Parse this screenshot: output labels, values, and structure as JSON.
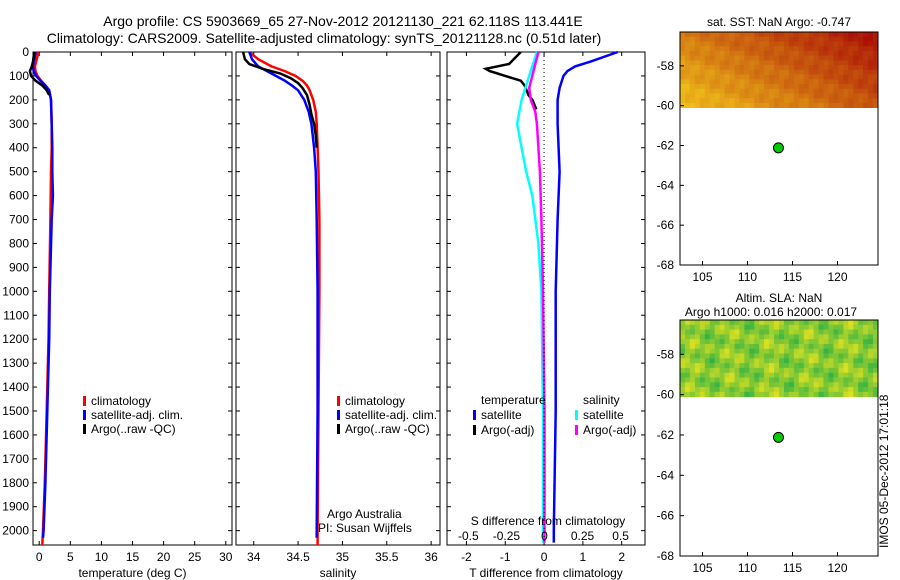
{
  "header": {
    "line1": "Argo profile: CS 5903669_65 27-Nov-2012 20121130_221 62.118S 113.441E",
    "line2": "Climatology: CARS2009. Satellite-adjusted climatology: synTS_20121128.nc (0.51d later)"
  },
  "credit": {
    "line1": "Argo Australia",
    "line2": "PI: Susan Wijffels"
  },
  "stamp": "IMOS 05-Dec-2012 17:01:18",
  "colors": {
    "climatology": "#ff0000",
    "satellite_clim": "#0000ff",
    "argo": "#000000",
    "salinity_satellite": "#00ffff",
    "salinity_argo": "#ff00ff",
    "argo_dot": "#00cc00"
  },
  "chart_data": [
    {
      "type": "line",
      "id": "temperature",
      "xlabel": "temperature (deg C)",
      "xlim": [
        -1,
        31
      ],
      "ylim": [
        2060,
        0
      ],
      "xticks": [
        0,
        5,
        10,
        15,
        20,
        25,
        30
      ],
      "yticks": [
        0,
        100,
        200,
        300,
        400,
        500,
        600,
        700,
        800,
        900,
        1000,
        1100,
        1200,
        1300,
        1400,
        1500,
        1600,
        1700,
        1800,
        1900,
        2000
      ],
      "legend": [
        "climatology",
        "satellite-adj. clim.",
        "Argo(..raw -QC)"
      ],
      "series": [
        {
          "name": "climatology",
          "color": "#ff0000",
          "depth": [
            0,
            20,
            40,
            60,
            80,
            100,
            120,
            140,
            160,
            200,
            300,
            400,
            500,
            700,
            1000,
            1200,
            1500,
            1800,
            2000,
            2060
          ],
          "values": [
            -0.2,
            -0.3,
            -0.5,
            -0.7,
            -0.6,
            -0.3,
            0.3,
            1.0,
            1.6,
            1.9,
            2.0,
            2.0,
            1.9,
            1.8,
            1.6,
            1.5,
            1.2,
            0.9,
            0.6,
            0.5
          ]
        },
        {
          "name": "satellite-adj. clim.",
          "color": "#0000ff",
          "depth": [
            0,
            20,
            40,
            60,
            80,
            100,
            120,
            140,
            160,
            200,
            300,
            400,
            500,
            600,
            700,
            1000,
            1200,
            1500,
            1800,
            2000,
            2030
          ],
          "values": [
            -0.6,
            -0.7,
            -0.9,
            -1.0,
            -0.9,
            -0.5,
            0.2,
            1.0,
            1.6,
            1.9,
            2.0,
            2.1,
            2.1,
            2.2,
            2.0,
            1.7,
            1.6,
            1.3,
            1.0,
            0.7,
            0.6
          ]
        },
        {
          "name": "Argo(..raw -QC)",
          "color": "#000000",
          "depth": [
            0,
            40,
            60,
            80,
            100,
            120,
            140,
            160,
            180
          ],
          "values": [
            -0.8,
            -1.0,
            -1.2,
            -1.5,
            -1.3,
            -0.6,
            0.5,
            1.2,
            1.6
          ]
        }
      ]
    },
    {
      "type": "line",
      "id": "salinity",
      "xlabel": "salinity",
      "xlim": [
        33.8,
        36.1
      ],
      "ylim": [
        2060,
        0
      ],
      "xticks": [
        34,
        34.5,
        35,
        35.5,
        36
      ],
      "legend": [
        "climatology",
        "satellite-adj. clim.",
        "Argo(..raw -QC)"
      ],
      "series": [
        {
          "name": "climatology",
          "color": "#ff0000",
          "depth": [
            0,
            30,
            60,
            80,
            100,
            120,
            140,
            160,
            200,
            250,
            300,
            400,
            500,
            700,
            1000,
            1500,
            2000,
            2060
          ],
          "values": [
            33.95,
            34.05,
            34.2,
            34.35,
            34.47,
            34.55,
            34.6,
            34.63,
            34.67,
            34.7,
            34.71,
            34.72,
            34.73,
            34.74,
            34.74,
            34.73,
            34.72,
            34.72
          ]
        },
        {
          "name": "satellite-adj. clim.",
          "color": "#0000ff",
          "depth": [
            0,
            30,
            60,
            80,
            100,
            120,
            140,
            160,
            200,
            250,
            300,
            400,
            500,
            700,
            1000,
            1500,
            2000,
            2030
          ],
          "values": [
            33.95,
            33.98,
            34.05,
            34.15,
            34.25,
            34.35,
            34.43,
            34.5,
            34.57,
            34.62,
            34.65,
            34.68,
            34.7,
            34.71,
            34.72,
            34.72,
            34.71,
            34.71
          ]
        },
        {
          "name": "Argo(..raw -QC)",
          "color": "#000000",
          "depth": [
            0,
            30,
            50,
            70,
            90,
            110,
            130,
            150,
            180,
            220,
            260,
            300,
            350,
            400
          ],
          "values": [
            33.88,
            33.9,
            33.95,
            34.1,
            34.3,
            34.42,
            34.5,
            34.55,
            34.6,
            34.63,
            34.65,
            34.68,
            34.7,
            34.71
          ]
        }
      ]
    },
    {
      "type": "line",
      "id": "difference",
      "xlabel": "T difference from climatology",
      "xlabel_top": "S difference from climatology",
      "xlim": [
        -2.5,
        2.6
      ],
      "xlim_top": [
        -0.64,
        0.66
      ],
      "ylim": [
        2060,
        0
      ],
      "xticks": [
        -2,
        -1,
        0,
        1,
        2
      ],
      "xticks_top": [
        -0.5,
        -0.25,
        0,
        0.25,
        0.5
      ],
      "legend_titles": [
        "temperature",
        "salinity"
      ],
      "legend": [
        "satellite",
        "Argo(-adj)",
        "satellite",
        "Argo(-adj)"
      ],
      "series": [
        {
          "name": "temperature satellite",
          "color": "#0000ff",
          "axis": "T",
          "depth": [
            0,
            40,
            60,
            80,
            100,
            150,
            200,
            300,
            500,
            700,
            1000,
            1500,
            2000,
            2050
          ],
          "values": [
            1.9,
            1.2,
            0.8,
            0.6,
            0.5,
            0.4,
            0.35,
            0.35,
            0.4,
            0.35,
            0.3,
            0.3,
            0.25,
            0.25
          ]
        },
        {
          "name": "temperature Argo(-adj)",
          "color": "#000000",
          "axis": "T",
          "depth": [
            0,
            50,
            70,
            80,
            90,
            100,
            110,
            120,
            140,
            160,
            180,
            200,
            240
          ],
          "values": [
            -0.6,
            -0.9,
            -1.5,
            -1.4,
            -1.2,
            -1.0,
            -0.8,
            -0.6,
            -0.5,
            -0.45,
            -0.4,
            -0.3,
            -0.2
          ]
        },
        {
          "name": "salinity satellite",
          "color": "#00ffff",
          "axis": "S",
          "depth": [
            0,
            100,
            200,
            300,
            400,
            500,
            600,
            800,
            1000,
            1500,
            2000,
            2050
          ],
          "values": [
            -0.05,
            -0.1,
            -0.15,
            -0.18,
            -0.15,
            -0.12,
            -0.08,
            -0.04,
            -0.02,
            -0.01,
            -0.01,
            -0.01
          ]
        },
        {
          "name": "salinity Argo(-adj)",
          "color": "#ff00ff",
          "axis": "S",
          "depth": [
            0,
            50,
            100,
            150,
            200,
            250,
            300,
            400,
            500,
            700,
            1000,
            1500,
            2000,
            2050
          ],
          "values": [
            -0.04,
            -0.06,
            -0.08,
            -0.1,
            -0.09,
            -0.06,
            -0.05,
            -0.04,
            -0.03,
            -0.02,
            -0.01,
            0.0,
            0.0,
            0.0
          ]
        }
      ]
    },
    {
      "type": "heatmap",
      "id": "sst_map",
      "title": "sat. SST: NaN Argo: -0.747",
      "xlim": [
        102.5,
        124.5
      ],
      "ylim": [
        -68,
        -56.3
      ],
      "xticks": [
        105,
        110,
        115,
        120
      ],
      "yticks": [
        -68,
        -66,
        -64,
        -62,
        -60,
        -58
      ],
      "data_lat_range": [
        -60.1,
        -56.3
      ],
      "palette": "hot",
      "argo_position": {
        "lon": 113.441,
        "lat": -62.118
      }
    },
    {
      "type": "heatmap",
      "id": "sla_map",
      "title": "Altim. SLA: NaN",
      "subtitle": "Argo h1000: 0.016 h2000: 0.017",
      "xlim": [
        102.5,
        124.5
      ],
      "ylim": [
        -68,
        -56.3
      ],
      "xticks": [
        105,
        110,
        115,
        120
      ],
      "yticks": [
        -68,
        -66,
        -64,
        -62,
        -60,
        -58
      ],
      "data_lat_range": [
        -60.1,
        -56.3
      ],
      "palette": "green",
      "argo_position": {
        "lon": 113.441,
        "lat": -62.118
      }
    }
  ]
}
